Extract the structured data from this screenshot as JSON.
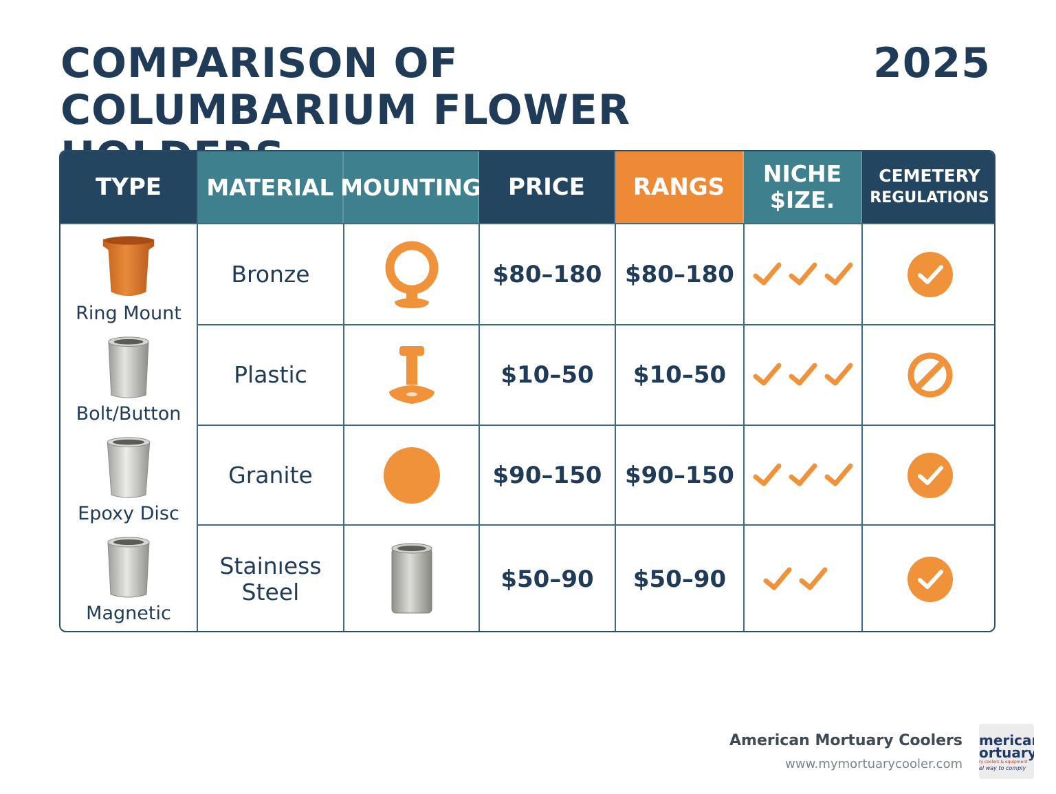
{
  "title": "COMPARISON OF COLUMBARIUM FLOWER HOLDERS",
  "year": "2025",
  "headers": {
    "type": "TYPE",
    "material": "MATERIAL",
    "mounting": "MOUNTING",
    "price": "PRICE",
    "rangs": "RANGS",
    "niche_line1": "NICHE",
    "niche_line2": "$IZE.",
    "cemetery_line1": "CEMETERY",
    "cemetery_line2": "REGULATIONS"
  },
  "rows": [
    {
      "type": "Ring Mount",
      "material_line1": "Bronze",
      "material_line2": "",
      "price": "$80–180",
      "rangs": "$80–180",
      "niche_checks": 3,
      "regulation": "check",
      "mounting_icon": "ring-mount-icon",
      "vase_icon": "bronze-vase-icon"
    },
    {
      "type": "Bolt/Button",
      "material_line1": "Plastic",
      "material_line2": "",
      "price": "$10–50",
      "rangs": "$10–50",
      "niche_checks": 3,
      "regulation": "prohibited",
      "mounting_icon": "bolt-button-icon",
      "vase_icon": "plastic-vase-icon"
    },
    {
      "type": "Epoxy Disc",
      "material_line1": "Granite",
      "material_line2": "",
      "price": "$90–150",
      "rangs": "$90–150",
      "niche_checks": 3,
      "regulation": "check",
      "mounting_icon": "epoxy-disc-icon",
      "vase_icon": "granite-vase-icon"
    },
    {
      "type": "Magnetic",
      "material_line1": "Stainıess",
      "material_line2": "Steel",
      "price": "$50–90",
      "rangs": "$50–90",
      "niche_checks": 2,
      "regulation": "check",
      "mounting_icon": "magnetic-cup-icon",
      "vase_icon": "steel-vase-icon"
    }
  ],
  "colors": {
    "navy": "#234560",
    "teal": "#3f808e",
    "orange": "#ee8a35",
    "check_orange": "#f0923a"
  },
  "footer": {
    "company": "American Mortuary Coolers",
    "url": "www.mymortuarycooler.com"
  },
  "logo": {
    "line1": "merican",
    "line2": "ortuary",
    "tagline": "ry coolers & equipment",
    "slogan": "el way to comply"
  }
}
